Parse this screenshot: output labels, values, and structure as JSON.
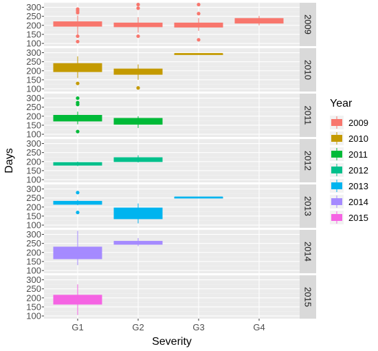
{
  "chart_data": {
    "type": "boxplot",
    "xlabel": "Severity",
    "ylabel": "Days",
    "categories": [
      "G1",
      "G2",
      "G3",
      "G4"
    ],
    "y_ticks": [
      100,
      150,
      200,
      250,
      300
    ],
    "ylim": [
      85,
      325
    ],
    "legend_title": "Year",
    "legend_position": "right",
    "grid": true,
    "facets": [
      {
        "label": "2009",
        "color": "#F8766D",
        "boxes": [
          {
            "category": "G1",
            "low": 150,
            "q1": 195,
            "median": 205,
            "q3": 220,
            "high": 255,
            "outliers": [
              290,
              280,
              270,
              140,
              110
            ]
          },
          {
            "category": "G2",
            "low": 160,
            "q1": 192,
            "median": 200,
            "q3": 213,
            "high": 245,
            "outliers": [
              315,
              295,
              140
            ]
          },
          {
            "category": "G3",
            "low": 170,
            "q1": 190,
            "median": 200,
            "q3": 213,
            "high": 240,
            "outliers": [
              315,
              265,
              120
            ]
          },
          {
            "category": "G4",
            "low": 200,
            "q1": 212,
            "median": 222,
            "q3": 238,
            "high": 252,
            "outliers": []
          }
        ]
      },
      {
        "label": "2010",
        "color": "#C49A00",
        "boxes": [
          {
            "category": "G1",
            "low": 160,
            "q1": 195,
            "median": 215,
            "q3": 240,
            "high": 280,
            "outliers": [
              130
            ]
          },
          {
            "category": "G2",
            "low": 150,
            "q1": 180,
            "median": 195,
            "q3": 210,
            "high": 235,
            "outliers": [
              105
            ]
          },
          {
            "category": "G3",
            "low": 295,
            "q1": 295,
            "median": 295,
            "q3": 295,
            "high": 295,
            "outliers": []
          }
        ]
      },
      {
        "label": "2011",
        "color": "#00BA38",
        "boxes": [
          {
            "category": "G1",
            "low": 155,
            "q1": 173,
            "median": 190,
            "q3": 205,
            "high": 225,
            "outliers": [
              300,
              275,
              265,
              115
            ]
          },
          {
            "category": "G2",
            "low": 135,
            "q1": 155,
            "median": 170,
            "q3": 188,
            "high": 200,
            "outliers": []
          }
        ]
      },
      {
        "label": "2012",
        "color": "#00C08B",
        "boxes": [
          {
            "category": "G1",
            "low": 175,
            "q1": 180,
            "median": 188,
            "q3": 195,
            "high": 200,
            "outliers": []
          },
          {
            "category": "G2",
            "low": 195,
            "q1": 200,
            "median": 210,
            "q3": 222,
            "high": 235,
            "outliers": []
          }
        ]
      },
      {
        "label": "2013",
        "color": "#00B4EF",
        "boxes": [
          {
            "category": "G1",
            "low": 210,
            "q1": 215,
            "median": 225,
            "q3": 232,
            "high": 240,
            "outliers": [
              280,
              170
            ]
          },
          {
            "category": "G2",
            "low": 110,
            "q1": 135,
            "median": 150,
            "q3": 195,
            "high": 220,
            "outliers": []
          },
          {
            "category": "G3",
            "low": 255,
            "q1": 255,
            "median": 255,
            "q3": 255,
            "high": 255,
            "outliers": []
          }
        ]
      },
      {
        "label": "2014",
        "color": "#A58AFF",
        "boxes": [
          {
            "category": "G1",
            "low": 130,
            "q1": 165,
            "median": 195,
            "q3": 230,
            "high": 320,
            "outliers": []
          },
          {
            "category": "G2",
            "low": 235,
            "q1": 245,
            "median": 255,
            "q3": 262,
            "high": 280,
            "outliers": []
          }
        ]
      },
      {
        "label": "2015",
        "color": "#F564E3",
        "boxes": [
          {
            "category": "G1",
            "low": 105,
            "q1": 165,
            "median": 190,
            "q3": 215,
            "high": 275,
            "outliers": []
          }
        ]
      }
    ]
  }
}
